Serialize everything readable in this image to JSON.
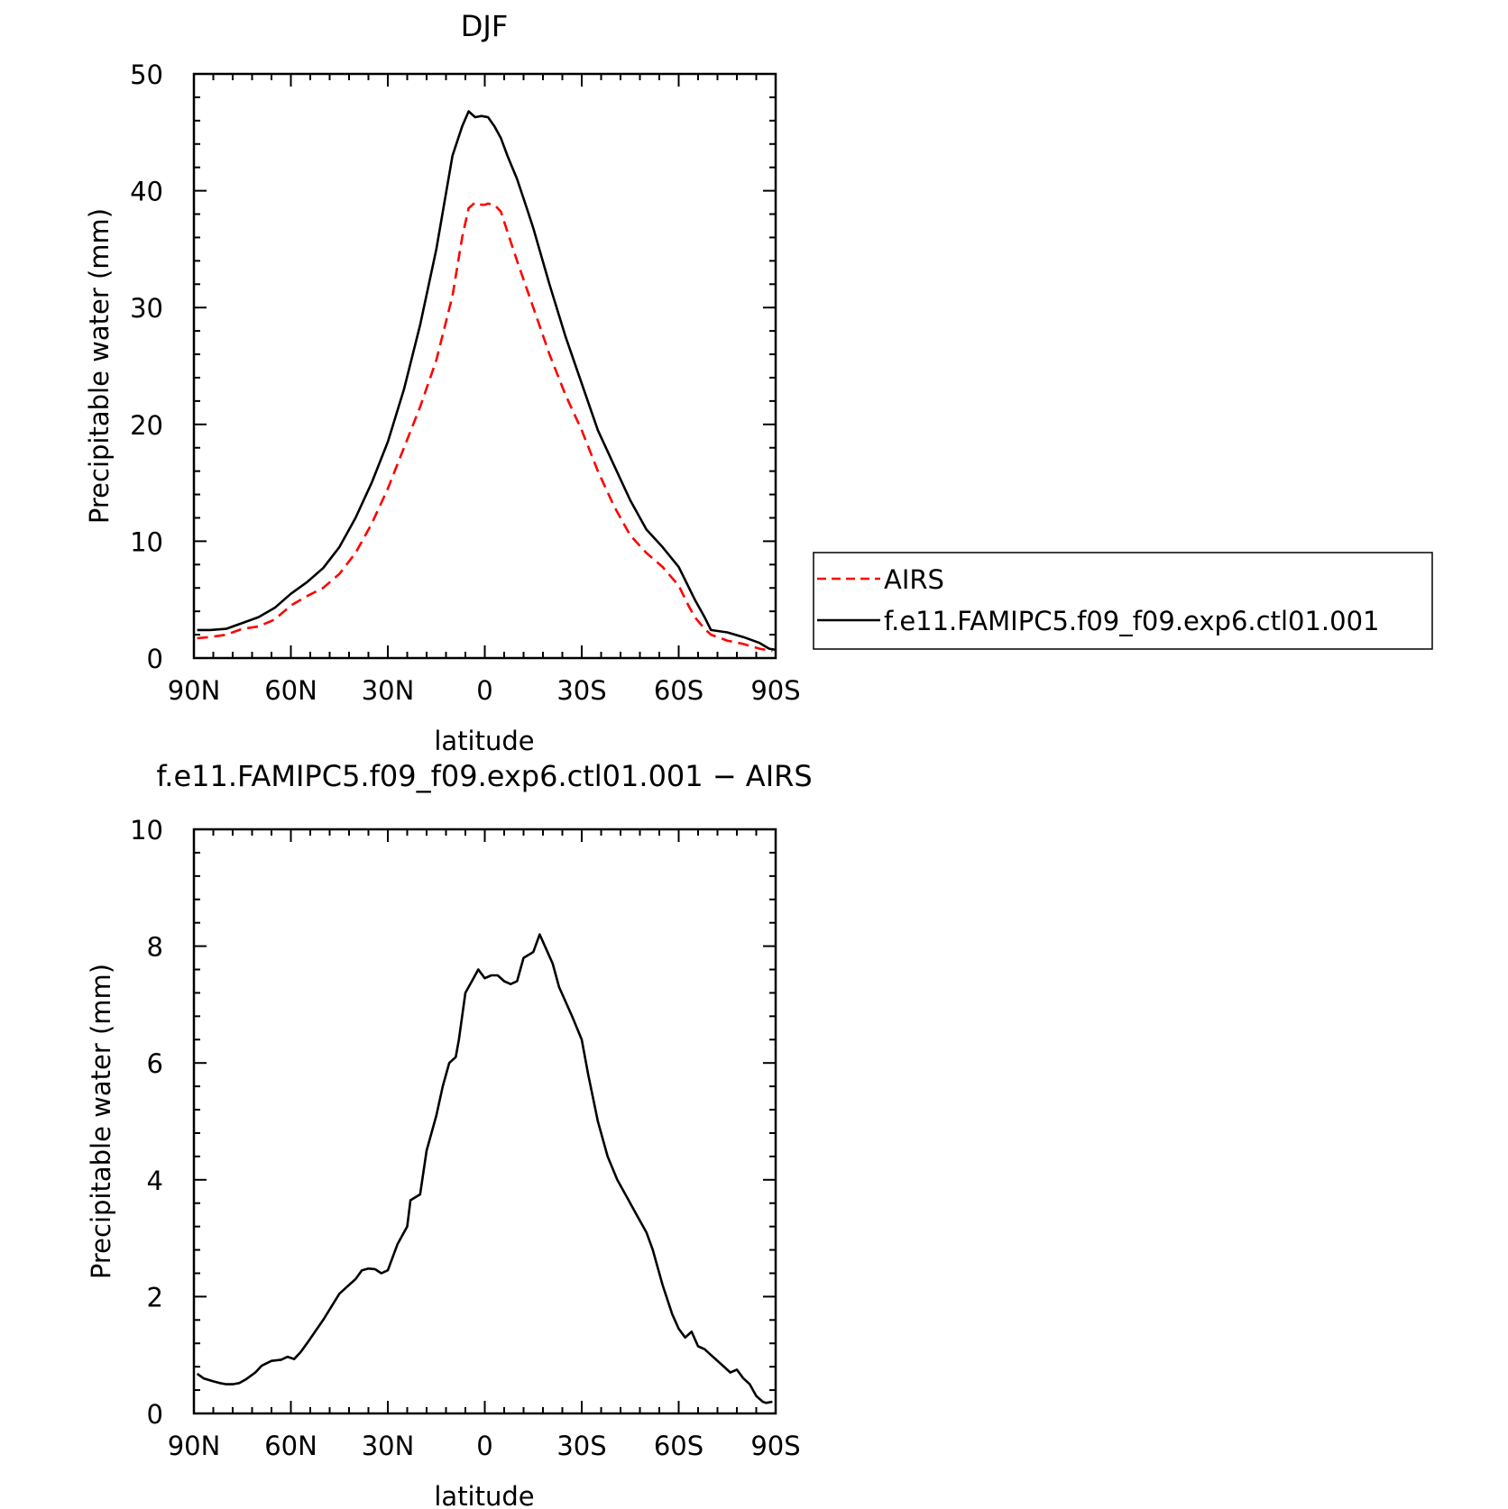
{
  "chart_data": [
    {
      "type": "line",
      "title": "DJF",
      "xlabel": "latitude",
      "ylabel": "Precipitable water (mm)",
      "xlim": [
        -90,
        90
      ],
      "ylim": [
        0,
        50
      ],
      "xticks": [
        -90,
        -60,
        -30,
        0,
        30,
        60,
        90
      ],
      "xticklabels": [
        "90N",
        "60N",
        "30N",
        "0",
        "30S",
        "60S",
        "90S"
      ],
      "yticks": [
        0,
        10,
        20,
        30,
        40,
        50
      ],
      "yticklabels": [
        "0",
        "10",
        "20",
        "30",
        "40",
        "50"
      ],
      "legend": "right",
      "series": [
        {
          "name": "AIRS",
          "color": "#ff0000",
          "style": "dashed",
          "x": [
            -89,
            -85,
            -80,
            -75,
            -70,
            -65,
            -60,
            -55,
            -50,
            -45,
            -40,
            -35,
            -30,
            -25,
            -20,
            -15,
            -10,
            -7,
            -5,
            -3,
            -1,
            0,
            1,
            3,
            5,
            7,
            10,
            15,
            20,
            25,
            30,
            35,
            40,
            45,
            50,
            55,
            60,
            63,
            65,
            68,
            70,
            75,
            80,
            85,
            89
          ],
          "y": [
            1.7,
            1.8,
            2.0,
            2.5,
            2.7,
            3.3,
            4.5,
            5.3,
            6.0,
            7.2,
            9.0,
            11.5,
            14.5,
            18.0,
            21.5,
            25.5,
            31.0,
            36.0,
            38.5,
            39.0,
            38.8,
            38.8,
            38.9,
            38.8,
            38.2,
            36.5,
            34.0,
            30.0,
            26.0,
            22.5,
            19.5,
            16.0,
            13.0,
            10.5,
            9.0,
            7.8,
            6.2,
            4.5,
            3.5,
            2.5,
            2.0,
            1.5,
            1.2,
            0.8,
            0.6
          ]
        },
        {
          "name": "f.e11.FAMIPC5.f09_f09.exp6.ctl01.001",
          "color": "#000000",
          "style": "solid",
          "x": [
            -89,
            -85,
            -80,
            -75,
            -70,
            -65,
            -60,
            -55,
            -50,
            -45,
            -40,
            -35,
            -30,
            -25,
            -20,
            -15,
            -10,
            -7,
            -5,
            -3,
            -1,
            1,
            3,
            5,
            7,
            10,
            13,
            15,
            20,
            25,
            30,
            35,
            40,
            45,
            50,
            55,
            60,
            65,
            68,
            70,
            75,
            80,
            85,
            88,
            90
          ],
          "y": [
            2.4,
            2.4,
            2.5,
            3.0,
            3.5,
            4.3,
            5.5,
            6.5,
            7.7,
            9.5,
            12.0,
            15.0,
            18.5,
            23.0,
            28.5,
            35.0,
            43.0,
            45.5,
            46.8,
            46.3,
            46.4,
            46.3,
            45.5,
            44.5,
            43.0,
            41.0,
            38.5,
            36.8,
            32.0,
            27.5,
            23.5,
            19.5,
            16.5,
            13.5,
            11.0,
            9.5,
            7.8,
            5.0,
            3.5,
            2.4,
            2.2,
            1.8,
            1.3,
            0.8,
            0.7
          ]
        }
      ]
    },
    {
      "type": "line",
      "title": "f.e11.FAMIPC5.f09_f09.exp6.ctl01.001 − AIRS",
      "xlabel": "latitude",
      "ylabel": "Precipitable water (mm)",
      "xlim": [
        -90,
        90
      ],
      "ylim": [
        0,
        10
      ],
      "xticks": [
        -90,
        -60,
        -30,
        0,
        30,
        60,
        90
      ],
      "xticklabels": [
        "90N",
        "60N",
        "30N",
        "0",
        "30S",
        "60S",
        "90S"
      ],
      "yticks": [
        0,
        2,
        4,
        6,
        8,
        10
      ],
      "yticklabels": [
        "0",
        "2",
        "4",
        "6",
        "8",
        "10"
      ],
      "series": [
        {
          "color": "#000000",
          "style": "solid",
          "x": [
            -89,
            -87,
            -84,
            -82,
            -80,
            -78,
            -76,
            -74,
            -71,
            -69,
            -66,
            -63,
            -61,
            -59,
            -57,
            -55,
            -50,
            -45,
            -42,
            -40,
            -38,
            -36,
            -34,
            -32,
            -30,
            -27,
            -24,
            -23,
            -20,
            -18,
            -15,
            -13,
            -11,
            -9,
            -8,
            -6,
            -4,
            -2,
            0,
            2,
            4,
            6,
            8,
            10,
            12,
            15,
            17,
            19,
            21,
            23,
            27,
            30,
            32,
            35,
            38,
            41,
            44,
            47,
            50,
            52,
            55,
            58,
            60,
            62,
            64,
            66,
            68,
            70,
            73,
            76,
            78,
            80,
            82,
            84,
            86,
            87,
            89
          ],
          "y": [
            0.68,
            0.6,
            0.55,
            0.52,
            0.5,
            0.5,
            0.52,
            0.58,
            0.7,
            0.82,
            0.9,
            0.92,
            0.97,
            0.93,
            1.05,
            1.2,
            1.6,
            2.05,
            2.2,
            2.3,
            2.45,
            2.48,
            2.47,
            2.4,
            2.45,
            2.9,
            3.2,
            3.65,
            3.75,
            4.5,
            5.1,
            5.6,
            6.0,
            6.1,
            6.4,
            7.2,
            7.4,
            7.6,
            7.45,
            7.5,
            7.5,
            7.4,
            7.35,
            7.4,
            7.8,
            7.9,
            8.2,
            7.95,
            7.7,
            7.3,
            6.8,
            6.4,
            5.8,
            5.0,
            4.4,
            4.0,
            3.7,
            3.4,
            3.1,
            2.8,
            2.2,
            1.7,
            1.45,
            1.3,
            1.4,
            1.15,
            1.1,
            1.0,
            0.85,
            0.7,
            0.75,
            0.6,
            0.5,
            0.3,
            0.2,
            0.18,
            0.2
          ]
        }
      ]
    }
  ]
}
